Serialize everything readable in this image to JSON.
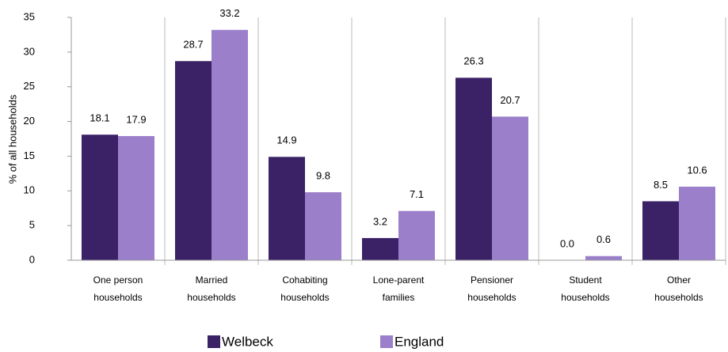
{
  "chart_data": {
    "type": "bar",
    "y_label": "% of all households",
    "categories": [
      [
        "One person",
        "households"
      ],
      [
        "Married",
        "households"
      ],
      [
        "Cohabiting",
        "households"
      ],
      [
        "Lone-parent",
        "families"
      ],
      [
        "Pensioner",
        "households"
      ],
      [
        "Student",
        "households"
      ],
      [
        "Other",
        "households"
      ]
    ],
    "series": [
      {
        "name": "Welbeck",
        "color": "#3b2266",
        "values": [
          18.1,
          28.7,
          14.9,
          3.2,
          26.3,
          0.0,
          8.5
        ],
        "value_labels": [
          "18.1",
          "28.7",
          "14.9",
          "3.2",
          "26.3",
          "0.0",
          "8.5"
        ]
      },
      {
        "name": "England",
        "color": "#9b7fcb",
        "values": [
          17.9,
          33.2,
          9.8,
          7.1,
          20.7,
          0.6,
          10.6
        ],
        "value_labels": [
          "17.9",
          "33.2",
          "9.8",
          "7.1",
          "20.7",
          "0.6",
          "10.6"
        ]
      }
    ],
    "ylim": [
      0,
      35
    ],
    "yticks": [
      0,
      5,
      10,
      15,
      20,
      25,
      30,
      35
    ],
    "grid": false,
    "legend": "bottom"
  }
}
